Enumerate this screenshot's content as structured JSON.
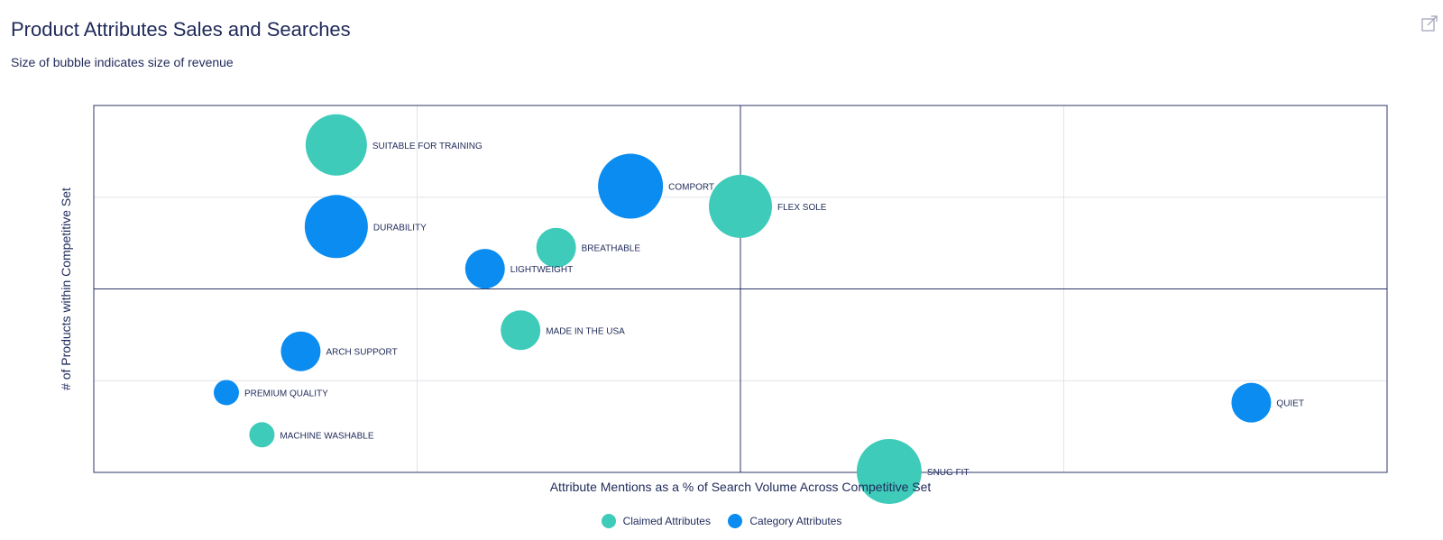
{
  "header": {
    "title": "Product Attributes Sales and Searches",
    "subtitle": "Size of bubble indicates size of revenue",
    "export_icon": "external-link-icon"
  },
  "colors": {
    "claimed": "#3ecbb9",
    "category": "#0a8cf0",
    "title_text": "#1f2a5a",
    "axis_line": "#2c3566",
    "grid": "#e3e4ea"
  },
  "chart_data": {
    "type": "scatter",
    "bubble": true,
    "xlabel": "Attribute Mentions as a % of Search Volume Across Competitive Set",
    "ylabel": "# of Products within Competitive Set",
    "xlim": [
      0,
      4
    ],
    "ylim": [
      0,
      4
    ],
    "grid": true,
    "legend_position": "bottom",
    "series": [
      {
        "name": "Claimed Attributes",
        "color": "#3ecbb9",
        "points": [
          {
            "label": "SUITABLE FOR TRAINING",
            "x": 0.75,
            "y": 3.57,
            "size": 34
          },
          {
            "label": "FLEX SOLE",
            "x": 2.0,
            "y": 2.9,
            "size": 35
          },
          {
            "label": "BREATHABLE",
            "x": 1.43,
            "y": 2.45,
            "size": 22
          },
          {
            "label": "SNUG FIT",
            "x": 2.46,
            "y": 0.01,
            "size": 36
          },
          {
            "label": "MADE IN THE USA",
            "x": 1.32,
            "y": 1.55,
            "size": 22
          },
          {
            "label": "MACHINE WASHABLE",
            "x": 0.52,
            "y": 0.41,
            "size": 14
          }
        ]
      },
      {
        "name": "Category Attributes",
        "color": "#0a8cf0",
        "points": [
          {
            "label": "COMPORT",
            "x": 1.66,
            "y": 3.12,
            "size": 36
          },
          {
            "label": "DURABILITY",
            "x": 0.75,
            "y": 2.68,
            "size": 35
          },
          {
            "label": "LIGHTWEIGHT",
            "x": 1.21,
            "y": 2.22,
            "size": 22
          },
          {
            "label": "QUIET",
            "x": 3.58,
            "y": 0.76,
            "size": 22
          },
          {
            "label": "ARCH SUPPORT",
            "x": 0.64,
            "y": 1.32,
            "size": 22
          },
          {
            "label": "PREMIUM QUALITY",
            "x": 0.41,
            "y": 0.87,
            "size": 14
          }
        ]
      }
    ]
  },
  "legend": [
    {
      "label": "Claimed Attributes",
      "color": "#3ecbb9"
    },
    {
      "label": "Category Attributes",
      "color": "#0a8cf0"
    }
  ]
}
